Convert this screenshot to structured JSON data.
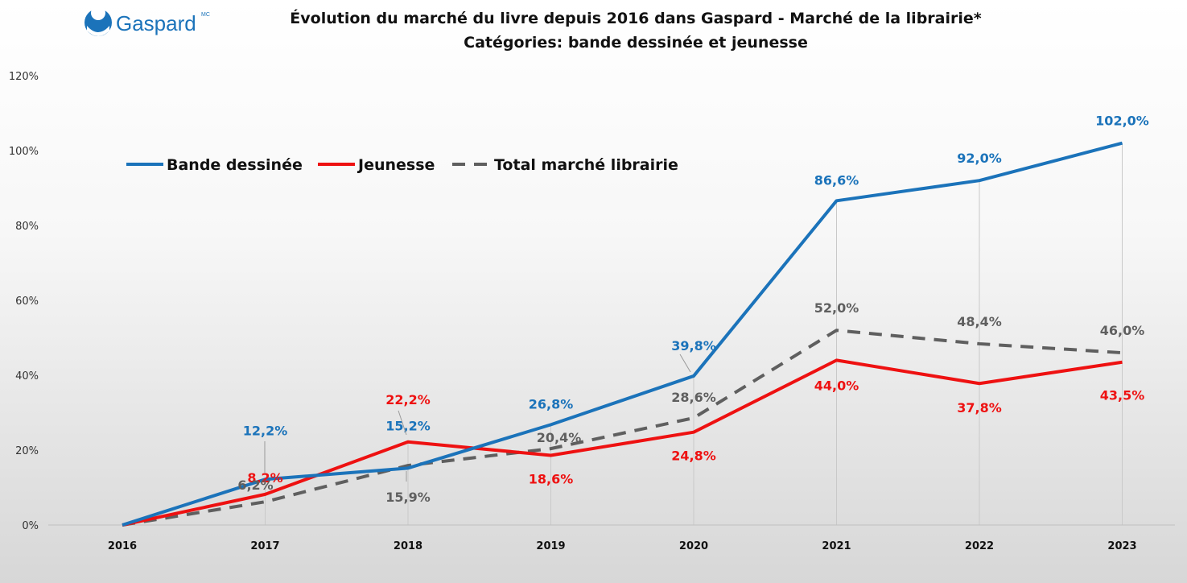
{
  "logo": {
    "text": "Gaspard",
    "mark": "MC"
  },
  "title_line1": "Évolution du marché du livre depuis 2016 dans Gaspard - Marché de la librairie*",
  "title_line2": "Catégories: bande dessinée et jeunesse",
  "chart_data": {
    "type": "line",
    "title": "Évolution du marché du livre depuis 2016 dans Gaspard - Marché de la librairie*",
    "subtitle": "Catégories: bande dessinée et jeunesse",
    "categories": [
      "2016",
      "2017",
      "2018",
      "2019",
      "2020",
      "2021",
      "2022",
      "2023"
    ],
    "ylim": [
      0,
      120
    ],
    "yticks": [
      "0%",
      "20%",
      "40%",
      "60%",
      "80%",
      "100%",
      "120%"
    ],
    "legend_position": "top-left",
    "series": [
      {
        "name": "Bande dessinée",
        "color": "#1b73ba",
        "dashed": false,
        "values": [
          0,
          12.2,
          15.2,
          26.8,
          39.8,
          86.6,
          92.0,
          102.0
        ],
        "labels": [
          null,
          "12,2%",
          "15,2%",
          "26,8%",
          "39,8%",
          "86,6%",
          "92,0%",
          "102,0%"
        ]
      },
      {
        "name": "Jeunesse",
        "color": "#ee1111",
        "dashed": false,
        "values": [
          0,
          8.2,
          22.2,
          18.6,
          24.8,
          44.0,
          37.8,
          43.5
        ],
        "labels": [
          null,
          "8,2%",
          "22,2%",
          "18,6%",
          "24,8%",
          "44,0%",
          "37,8%",
          "43,5%"
        ]
      },
      {
        "name": "Total marché librairie",
        "color": "#5f5f5f",
        "dashed": true,
        "values": [
          0,
          6.2,
          15.9,
          20.4,
          28.6,
          52.0,
          48.4,
          46.0
        ],
        "labels": [
          null,
          "6,2%",
          "15,9%",
          "20,4%",
          "28,6%",
          "52,0%",
          "48,4%",
          "46,0%"
        ]
      }
    ]
  }
}
